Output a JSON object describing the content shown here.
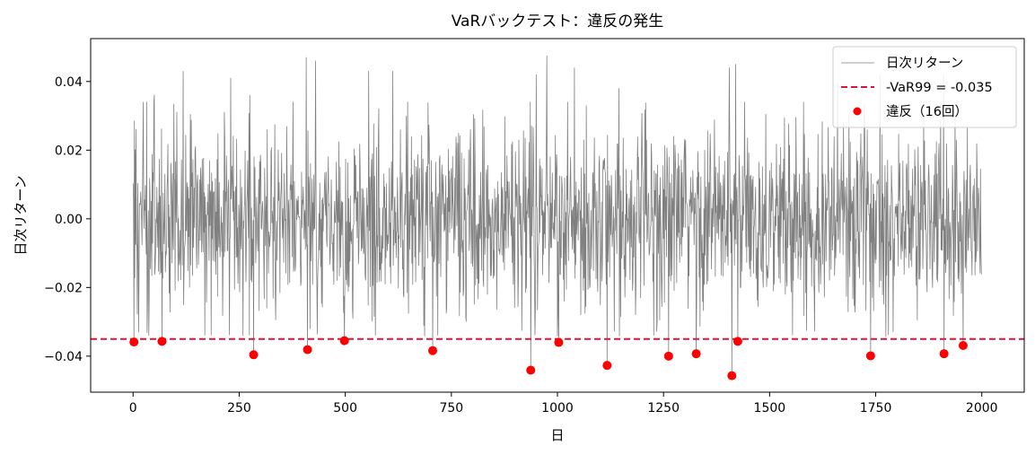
{
  "chart_data": {
    "type": "line",
    "title": "VaRバックテスト：違反の発生",
    "xlabel": "日",
    "ylabel": "日次リターン",
    "xlim": [
      -100,
      2100
    ],
    "ylim": [
      -0.0505,
      0.0525
    ],
    "x_ticks": [
      0,
      250,
      500,
      750,
      1000,
      1250,
      1500,
      1750,
      2000
    ],
    "x_tick_labels": [
      "0",
      "250",
      "500",
      "750",
      "1000",
      "1250",
      "1500",
      "1750",
      "2000"
    ],
    "y_ticks": [
      -0.04,
      -0.02,
      0.0,
      0.02,
      0.04
    ],
    "y_tick_labels": [
      "−0.04",
      "−0.02",
      "0.00",
      "0.02",
      "0.04"
    ],
    "grid": false,
    "legend_position": "top-right",
    "n_days": 2000,
    "series": [
      {
        "name": "日次リターン",
        "kind": "line",
        "color": "#808080",
        "notable_points": [
          {
            "x": 50,
            "y": 0.036
          },
          {
            "x": 118,
            "y": 0.043
          },
          {
            "x": 230,
            "y": 0.041
          },
          {
            "x": 275,
            "y": 0.036
          },
          {
            "x": 408,
            "y": 0.047
          },
          {
            "x": 430,
            "y": 0.046
          },
          {
            "x": 555,
            "y": 0.043
          },
          {
            "x": 612,
            "y": 0.043
          },
          {
            "x": 950,
            "y": 0.042
          },
          {
            "x": 975,
            "y": 0.0475
          },
          {
            "x": 1040,
            "y": 0.044
          },
          {
            "x": 1145,
            "y": 0.038
          },
          {
            "x": 1405,
            "y": 0.044
          },
          {
            "x": 1420,
            "y": 0.045
          },
          {
            "x": 1660,
            "y": 0.04
          },
          {
            "x": 1760,
            "y": 0.042
          },
          {
            "x": 1910,
            "y": 0.042
          }
        ]
      },
      {
        "name": "-VaR99 = -0.035",
        "kind": "hline",
        "color": "#dc143c",
        "y": -0.035
      },
      {
        "name": "違反（16回）",
        "kind": "scatter",
        "color": "#ff0000",
        "points": [
          {
            "x": 2,
            "y": -0.0359
          },
          {
            "x": 68,
            "y": -0.0357
          },
          {
            "x": 284,
            "y": -0.0396
          },
          {
            "x": 411,
            "y": -0.0381
          },
          {
            "x": 498,
            "y": -0.0355
          },
          {
            "x": 706,
            "y": -0.0384
          },
          {
            "x": 937,
            "y": -0.0441
          },
          {
            "x": 1003,
            "y": -0.036
          },
          {
            "x": 1117,
            "y": -0.0427
          },
          {
            "x": 1262,
            "y": -0.04
          },
          {
            "x": 1327,
            "y": -0.0393
          },
          {
            "x": 1411,
            "y": -0.0457
          },
          {
            "x": 1425,
            "y": -0.0357
          },
          {
            "x": 1738,
            "y": -0.0399
          },
          {
            "x": 1911,
            "y": -0.0393
          },
          {
            "x": 1956,
            "y": -0.0369
          }
        ]
      }
    ]
  }
}
